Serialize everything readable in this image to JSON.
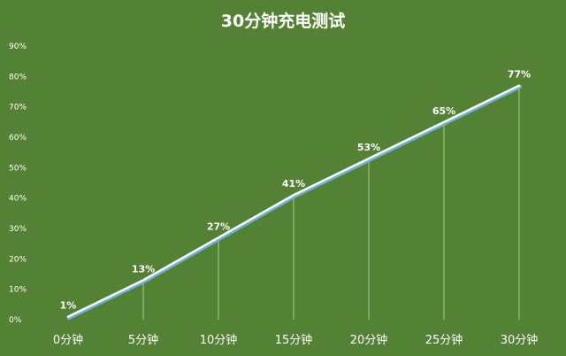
{
  "chart_data": {
    "type": "line",
    "title": "30分钟充电测试",
    "categories": [
      "0分钟",
      "5分钟",
      "10分钟",
      "15分钟",
      "20分钟",
      "25分钟",
      "30分钟"
    ],
    "series": [
      {
        "values": [
          1,
          13,
          27,
          41,
          53,
          65,
          77
        ]
      }
    ],
    "data_labels": [
      "1%",
      "13%",
      "27%",
      "41%",
      "53%",
      "65%",
      "77%"
    ],
    "y_ticks": [
      "0%",
      "10%",
      "20%",
      "30%",
      "40%",
      "50%",
      "60%",
      "70%",
      "80%",
      "90%"
    ],
    "ylim": [
      0,
      90
    ],
    "grid": false,
    "drop_lines": true,
    "legend": "none",
    "colors": {
      "background": "#548235",
      "line": "#ffffff",
      "line_shadow": "#6fb0d8",
      "drop_line": "#a9d08e",
      "text": "#ffffff"
    }
  }
}
